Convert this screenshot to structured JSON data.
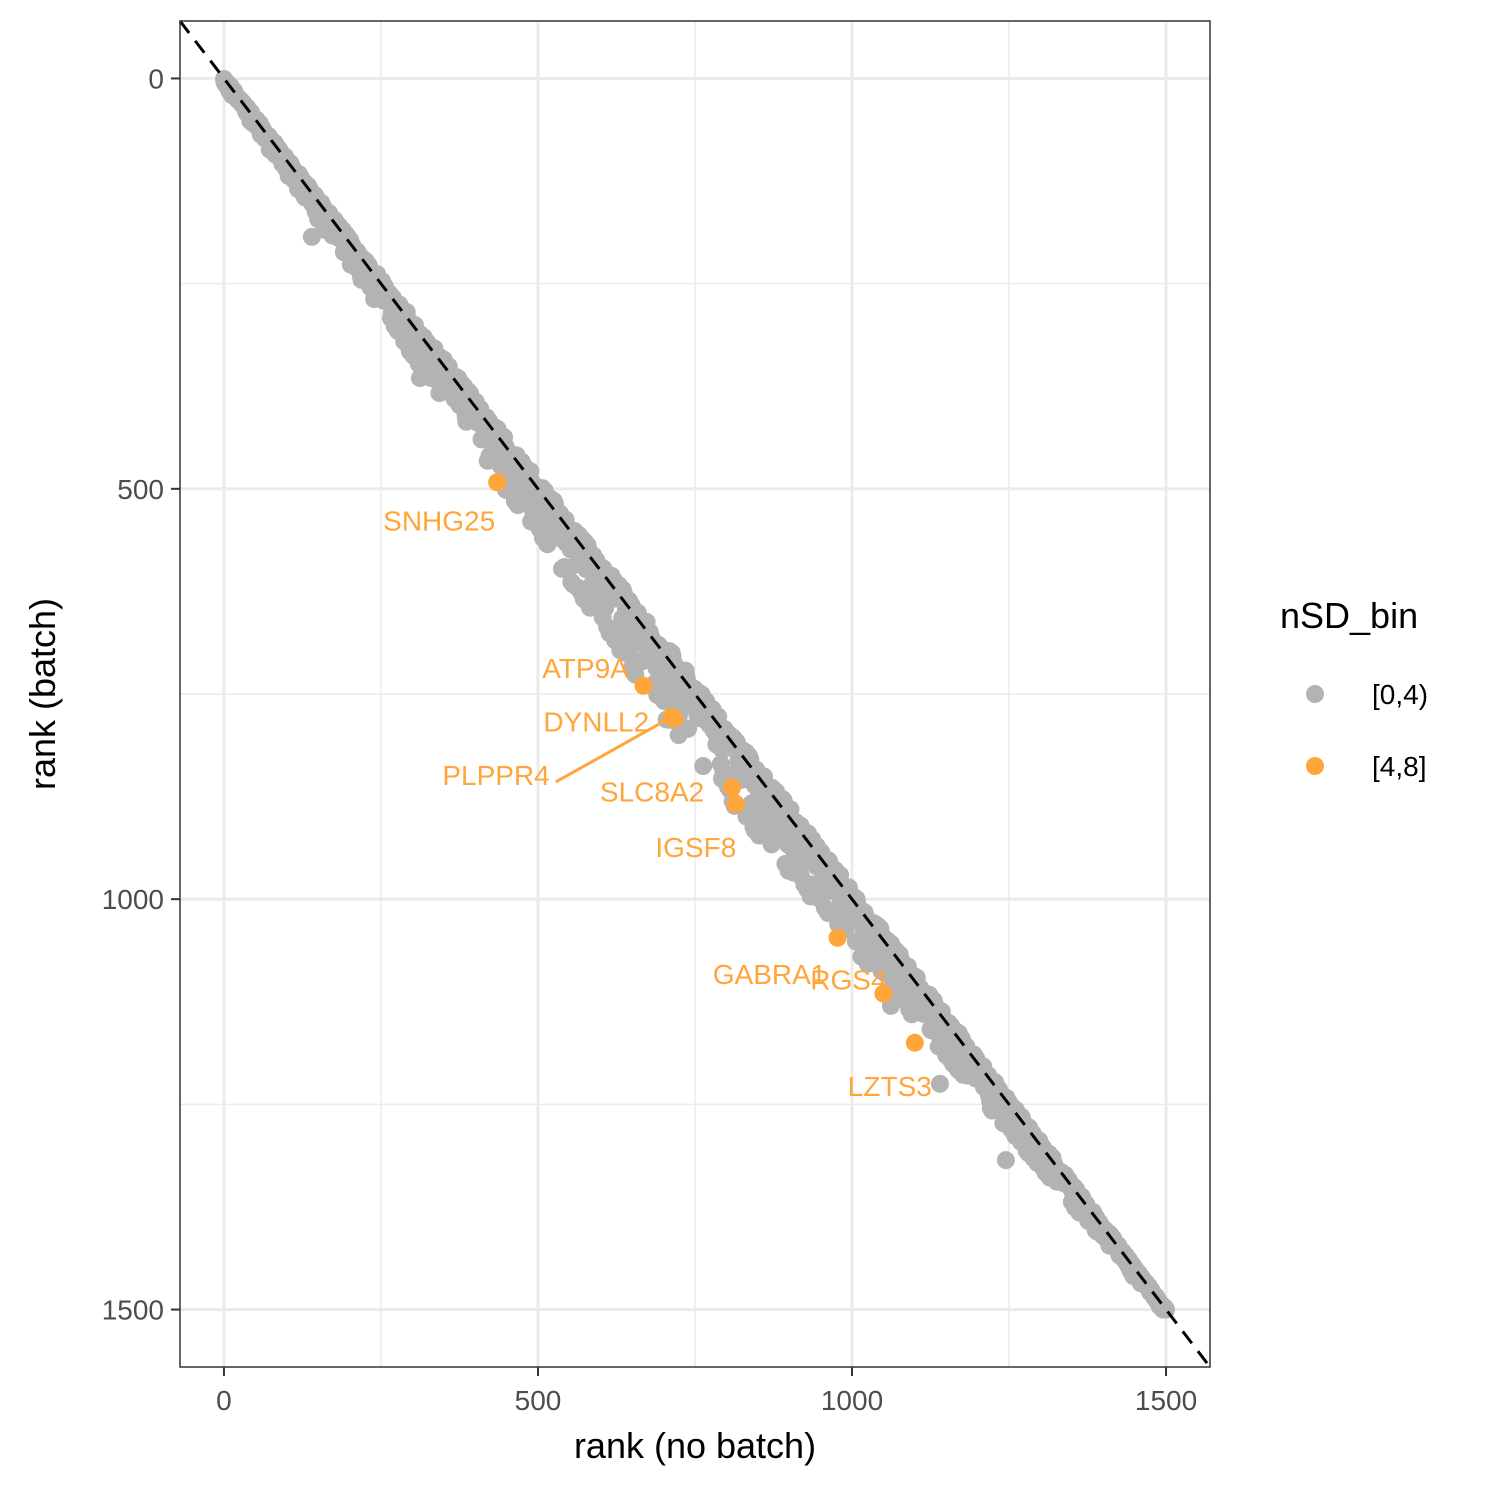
{
  "chart_data": {
    "type": "scatter",
    "xlabel": "rank (no batch)",
    "ylabel": "rank (batch)",
    "xlim": [
      -70,
      1570
    ],
    "ylim": [
      -70,
      1570
    ],
    "y_reversed": true,
    "x_ticks": [
      0,
      500,
      1000,
      1500
    ],
    "y_ticks": [
      0,
      500,
      1000,
      1500
    ],
    "grid": true,
    "reference_line": {
      "type": "identity",
      "style": "dashed",
      "color": "#000000"
    },
    "legend": {
      "title": "nSD_bin",
      "placement": "right",
      "entries": [
        {
          "label": "[0,4)",
          "color": "#B3B3B3"
        },
        {
          "label": "[4,8]",
          "color": "#FFA53A"
        }
      ]
    },
    "series": [
      {
        "name": "[0,4)",
        "color": "#B3B3B3",
        "trend": "points scattered tightly around the identity line from rank 0 to rank 1500, about 1500 points",
        "outliers": [
          {
            "x": 140,
            "y": 193
          },
          {
            "x": 312,
            "y": 365
          },
          {
            "x": 1062,
            "y": 1130
          },
          {
            "x": 1140,
            "y": 1225
          },
          {
            "x": 1245,
            "y": 1318
          }
        ]
      },
      {
        "name": "[4,8]",
        "color": "#FFA53A",
        "points": [
          {
            "x": 435,
            "y": 492,
            "label": "SNHG25"
          },
          {
            "x": 668,
            "y": 740,
            "label": "ATP9A"
          },
          {
            "x": 717,
            "y": 780,
            "label": "DYNLL2"
          },
          {
            "x": 713,
            "y": 778,
            "label": "PLPPR4"
          },
          {
            "x": 809,
            "y": 864,
            "label": "SLC8A2"
          },
          {
            "x": 815,
            "y": 884,
            "label": "IGSF8"
          },
          {
            "x": 977,
            "y": 1047,
            "label": "GABRA1"
          },
          {
            "x": 1050,
            "y": 1115,
            "label": "RGS4"
          },
          {
            "x": 1100,
            "y": 1175,
            "label": "LZTS3"
          }
        ]
      }
    ]
  }
}
